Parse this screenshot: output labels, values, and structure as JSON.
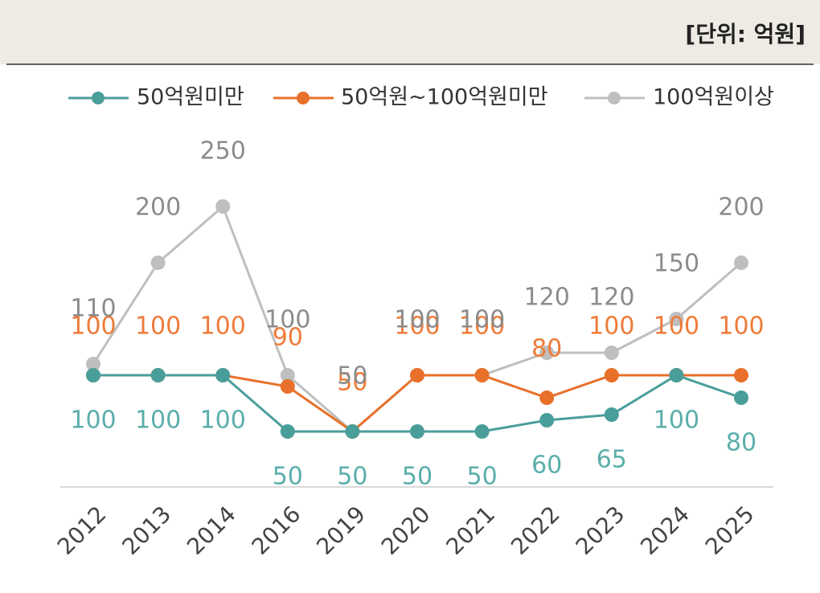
{
  "chart_data": {
    "type": "line",
    "unit_label": "[단위: 억원]",
    "categories": [
      "2012",
      "2013",
      "2014",
      "2016",
      "2019",
      "2020",
      "2021",
      "2022",
      "2023",
      "2024",
      "2025"
    ],
    "series": [
      {
        "name": "50억원미만",
        "color": "#4a9e9a",
        "values": [
          100,
          100,
          100,
          50,
          50,
          50,
          50,
          60,
          65,
          100,
          80
        ]
      },
      {
        "name": "50억원~100억원미만",
        "color": "#e8702a",
        "values": [
          100,
          100,
          100,
          90,
          50,
          100,
          100,
          80,
          100,
          100,
          100
        ]
      },
      {
        "name": "100억원이상",
        "color": "#bfbfbf",
        "values": [
          110,
          200,
          250,
          100,
          50,
          100,
          100,
          120,
          120,
          150,
          200
        ]
      }
    ],
    "ylim": [
      0,
      250
    ]
  }
}
